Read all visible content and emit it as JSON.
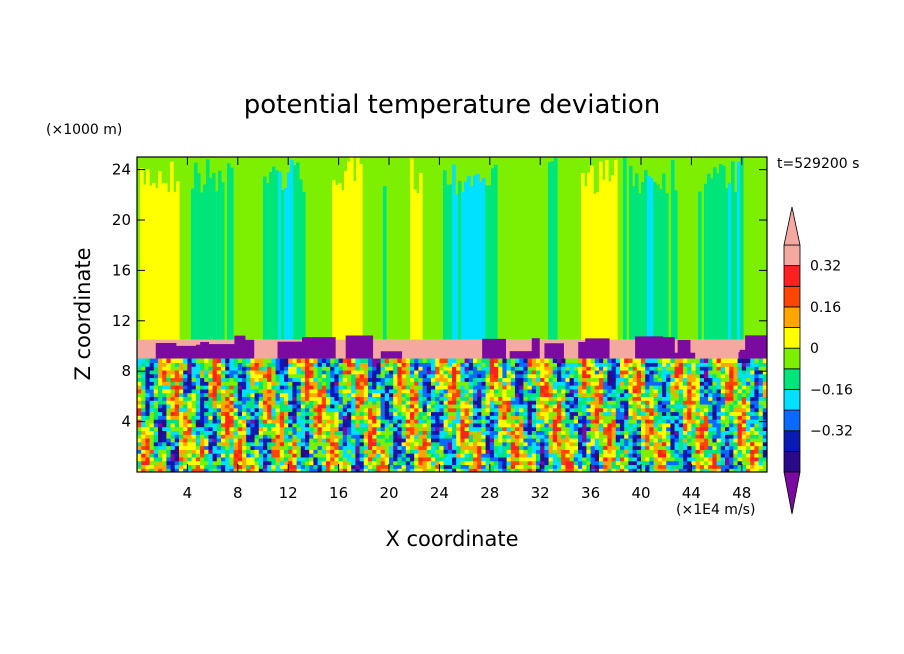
{
  "chart_data": {
    "type": "heatmap",
    "title": "potential temperature deviation",
    "xlabel": "X coordinate",
    "ylabel": "Z coordinate",
    "x_unit": "(×1E4 m/s)",
    "y_unit": "(×1000 m)",
    "time_label": "t=529200 s",
    "xlim": [
      0,
      50
    ],
    "ylim": [
      0,
      25
    ],
    "x_ticks": [
      "4",
      "8",
      "12",
      "16",
      "20",
      "24",
      "28",
      "32",
      "36",
      "40",
      "44",
      "48"
    ],
    "y_ticks": [
      "4",
      "8",
      "12",
      "16",
      "20",
      "24"
    ],
    "colorbar": {
      "levels": [
        -0.48,
        -0.4,
        -0.32,
        -0.24,
        -0.16,
        -0.08,
        0,
        0.08,
        0.16,
        0.24,
        0.32,
        0.4
      ],
      "tick_labels": [
        "0.32",
        "0.16",
        "0",
        "−0.16",
        "−0.32"
      ],
      "tick_values": [
        0.32,
        0.16,
        0,
        -0.16,
        -0.32
      ],
      "colors": [
        "#7a0aa0",
        "#2a0a8a",
        "#0a1ab5",
        "#0a6aff",
        "#00e0ff",
        "#00e57a",
        "#7cf000",
        "#ffff00",
        "#ffa500",
        "#ff4500",
        "#ff2020",
        "#f5a8a0"
      ],
      "extend": "both"
    },
    "layers": [
      {
        "z_range": [
          10.5,
          25
        ],
        "pattern": "near-zero, weak vertical streaks (green / light-green with cyan and yellow bands)"
      },
      {
        "z_range": [
          9,
          10.5
        ],
        "pattern": "positive max (pink) band with purple negative cells"
      },
      {
        "z_range": [
          0,
          9
        ],
        "pattern": "strong turbulent mixed positive/negative streaks"
      }
    ]
  }
}
